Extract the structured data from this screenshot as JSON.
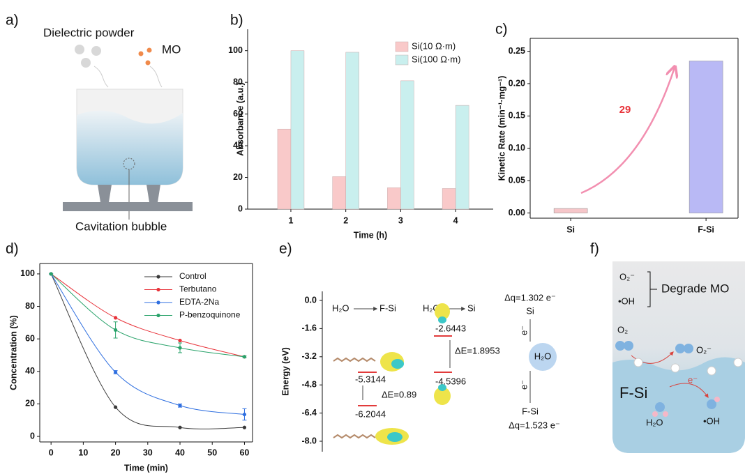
{
  "panel_a": {
    "label": "a)",
    "powder": "Dielectric powder",
    "mo": "MO",
    "bubble": "Cavitation bubble"
  },
  "chart_data": [
    {
      "type": "bar",
      "label": "b)",
      "xlabel": "Time (h)",
      "ylabel": "Absorbance (a.u.)",
      "categories": [
        "1",
        "2",
        "3",
        "4"
      ],
      "series": [
        {
          "name": "Si(10 Ω·m)",
          "color": "#f9c9c9",
          "values": [
            50.5,
            20.5,
            13.5,
            13
          ]
        },
        {
          "name": "Si(100 Ω·m)",
          "color": "#c9efee",
          "values": [
            100,
            99,
            81,
            65.5
          ]
        }
      ],
      "ylim": [
        0,
        113.5
      ],
      "yticks": [
        0,
        20,
        40,
        60,
        80,
        100
      ],
      "legend": "top-right"
    },
    {
      "type": "bar",
      "label": "c)",
      "ylabel": "Kinetic Rate (min⁻¹·mg⁻¹)",
      "categories": [
        "Si",
        "F-Si"
      ],
      "values": [
        0.007,
        0.235
      ],
      "colors": [
        "#f6c6c9",
        "#b9b9f5"
      ],
      "ylim": [
        -0.008,
        0.27
      ],
      "yticks": [
        {
          "value": 0,
          "label": "0.00"
        },
        0.05,
        {
          "value": 0.1,
          "label": "0.10"
        },
        0.15,
        {
          "value": 0.2,
          "label": "0.20"
        },
        0.25
      ],
      "annotation": "29"
    },
    {
      "type": "line",
      "label": "d)",
      "xlabel": "Time (min)",
      "ylabel": "Concentration (%)",
      "x": [
        0,
        20,
        40,
        60
      ],
      "series": [
        {
          "name": "Control",
          "color": "#3a3a3a",
          "values": [
            100,
            18,
            5.5,
            5.5
          ]
        },
        {
          "name": "Terbutano",
          "color": "#e8333a",
          "values": [
            100,
            73,
            59,
            49
          ]
        },
        {
          "name": "EDTA-2Na",
          "color": "#2f6fe0",
          "values": [
            100,
            39.5,
            19,
            13.5
          ],
          "errors": [
            0,
            1,
            1,
            3.5
          ]
        },
        {
          "name": "P-benzoquinone",
          "color": "#2aa36b",
          "values": [
            100,
            65.5,
            54.5,
            49
          ],
          "errors": [
            0,
            5,
            3,
            0.5
          ]
        }
      ],
      "xlim": [
        -3.5,
        62.5
      ],
      "ylim": [
        -3.4,
        106.4
      ],
      "xticks": [
        0,
        10,
        20,
        30,
        40,
        50,
        60
      ],
      "yticks": [
        0,
        20,
        40,
        60,
        80,
        100
      ],
      "legend": "top-right"
    }
  ],
  "panel_e": {
    "label": "e)",
    "ylabel": "Energy (eV)",
    "yticks": [
      "0.0",
      "-1.6",
      "-3.2",
      "-4.8",
      "-6.4",
      "-8.0"
    ],
    "h2o_a": "H₂O",
    "fsi_a": "F-Si",
    "h2o_b": "H₂O",
    "si_b": "Si",
    "lvl1": "-5.3144",
    "lvl2": "-6.2044",
    "de1": "ΔE=0.89",
    "lvl3": "-2.6443",
    "lvl4": "-4.5396",
    "de2": "ΔE=1.8953",
    "dq_top": "Δq=1.302 e⁻",
    "si": "Si",
    "e_top": "e⁻",
    "h2o": "H₂O",
    "e_bot": "e⁻",
    "fsi": "F-Si",
    "dq_bot": "Δq=1.523 e⁻"
  },
  "panel_f": {
    "label": "f)",
    "o2m": "O₂⁻",
    "oh": "•OH",
    "degrade": "Degrade MO",
    "o2": "O₂",
    "o2m2": "O₂⁻",
    "fsi": "F-Si",
    "e": "e⁻",
    "h2o": "H₂O",
    "oh2": "•OH"
  }
}
